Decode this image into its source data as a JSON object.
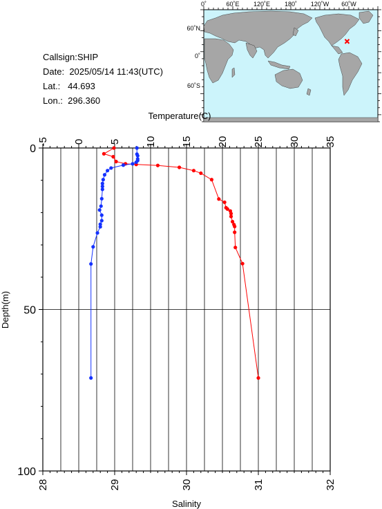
{
  "station": {
    "callsign_label": "Callsign:",
    "callsign": "SHIP",
    "date_label": "Date:",
    "date": "2025/05/14 11:43(UTC)",
    "lat_label": "Lat.:",
    "lat": "44.693",
    "lon_label": "Lon.:",
    "lon": "296.360"
  },
  "map": {
    "lon_ticks": [
      "0˚",
      "60˚E",
      "120˚E",
      "180˚",
      "120˚W",
      "60˚W"
    ],
    "lat_ticks": [
      "60˚N",
      "0˚",
      "60˚S"
    ],
    "ocean_color": "#ccf4fb",
    "land_color": "#a6a6a6",
    "marker_color": "#ff0000",
    "marker_lat": 44.693,
    "marker_lon": 296.36
  },
  "chart_data": {
    "type": "line",
    "title": "",
    "top_axis_label": "Temperature(C)",
    "bottom_axis_label": "Salinity",
    "ylabel": "Depth(m)",
    "top_ticks": [
      "-5",
      "0",
      "5",
      "10",
      "15",
      "20",
      "25",
      "30",
      "35"
    ],
    "bottom_ticks": [
      "28",
      "29",
      "30",
      "31",
      "32"
    ],
    "y_ticks": [
      "0",
      "50",
      "100"
    ],
    "temperature_range": [
      -5,
      35
    ],
    "salinity_range": [
      28,
      32
    ],
    "ylim": [
      0,
      100
    ],
    "y_inverted": true,
    "grid": true,
    "series": [
      {
        "name": "Temperature",
        "axis": "top",
        "color": "#ff0000",
        "depth": [
          0.0,
          1.8,
          2.7,
          4.2,
          4.9,
          5.1,
          5.4,
          6.0,
          7.0,
          7.8,
          9.8,
          15.8,
          16.8,
          18.5,
          18.9,
          19.5,
          20.3,
          21.2,
          22.8,
          23.7,
          24.3,
          26.1,
          30.8,
          35.8,
          71.2
        ],
        "temperature": [
          4.9,
          3.5,
          4.8,
          5.2,
          6.5,
          8.0,
          11.0,
          14.0,
          16.0,
          17.0,
          18.5,
          19.5,
          20.3,
          20.5,
          20.7,
          21.1,
          21.2,
          21.2,
          21.4,
          21.6,
          21.7,
          21.7,
          21.8,
          22.8,
          25.0
        ]
      },
      {
        "name": "Salinity",
        "axis": "bottom",
        "color": "#1432ff",
        "depth": [
          0.0,
          1.9,
          2.4,
          3.4,
          3.9,
          4.4,
          4.9,
          5.3,
          6.2,
          7.0,
          8.3,
          9.8,
          11.0,
          11.9,
          12.8,
          15.7,
          18.0,
          19.2,
          20.8,
          22.5,
          23.6,
          24.4,
          26.3,
          30.6,
          35.9,
          71.2
        ],
        "salinity": [
          29.31,
          29.31,
          29.32,
          29.32,
          29.32,
          29.3,
          29.25,
          29.12,
          28.95,
          28.9,
          28.86,
          28.84,
          28.83,
          28.83,
          28.83,
          28.82,
          28.81,
          28.79,
          28.82,
          28.82,
          28.8,
          28.8,
          28.76,
          28.7,
          28.67,
          28.67
        ]
      }
    ]
  }
}
